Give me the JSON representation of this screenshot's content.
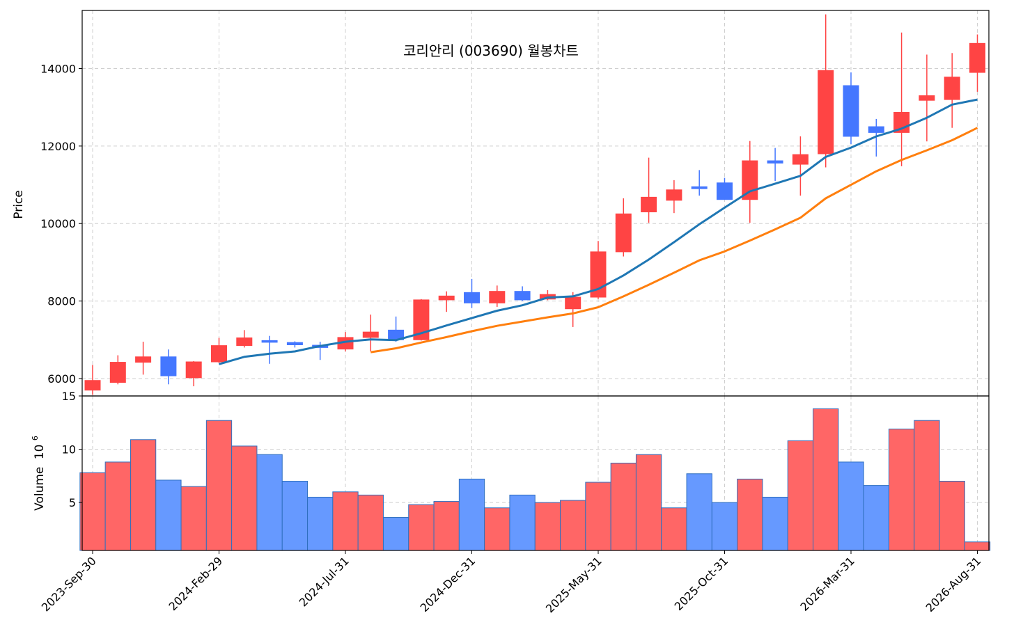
{
  "chart_data": {
    "type": "candlestick",
    "title": "코리안리 (003690) 월봉차트",
    "ylabel": "Price",
    "volume_label": "Volume",
    "volume_exponent_base": "10",
    "volume_exponent": "6",
    "colors": {
      "up": "#ff4444",
      "down": "#4477ff",
      "vol_up": "#ff6666",
      "vol_down": "#6699ff",
      "vol_edge": "#2f6fbf",
      "ma_short": "#1f77b4",
      "ma_long": "#ff7f0e"
    },
    "ylim": [
      5550,
      15500
    ],
    "yticks": [
      6000,
      8000,
      10000,
      12000,
      14000
    ],
    "volume_ylim": [
      0.5,
      15
    ],
    "volume_yticks": [
      5,
      10,
      15
    ],
    "xtick_labels": [
      "2023-Sep-30",
      "2024-Feb-29",
      "2024-Jul-31",
      "2024-Dec-31",
      "2025-May-31",
      "2025-Oct-31",
      "2026-Mar-31",
      "2026-Aug-31"
    ],
    "xtick_indices": [
      0,
      5,
      10,
      15,
      20,
      25,
      30,
      35
    ],
    "ohlc": [
      {
        "o": 5700,
        "h": 6350,
        "l": 5580,
        "c": 5950
      },
      {
        "o": 5900,
        "h": 6600,
        "l": 5850,
        "c": 6420
      },
      {
        "o": 6420,
        "h": 6950,
        "l": 6100,
        "c": 6560
      },
      {
        "o": 6560,
        "h": 6750,
        "l": 5850,
        "c": 6070
      },
      {
        "o": 6020,
        "h": 6450,
        "l": 5800,
        "c": 6430
      },
      {
        "o": 6430,
        "h": 7050,
        "l": 6400,
        "c": 6850
      },
      {
        "o": 6850,
        "h": 7250,
        "l": 6800,
        "c": 7050
      },
      {
        "o": 6980,
        "h": 7100,
        "l": 6380,
        "c": 6950
      },
      {
        "o": 6930,
        "h": 6960,
        "l": 6800,
        "c": 6870
      },
      {
        "o": 6860,
        "h": 6950,
        "l": 6480,
        "c": 6800
      },
      {
        "o": 6760,
        "h": 7200,
        "l": 6700,
        "c": 7060
      },
      {
        "o": 7060,
        "h": 7650,
        "l": 6700,
        "c": 7200
      },
      {
        "o": 7250,
        "h": 7600,
        "l": 6950,
        "c": 7000
      },
      {
        "o": 7000,
        "h": 8050,
        "l": 6980,
        "c": 8030
      },
      {
        "o": 8030,
        "h": 8250,
        "l": 7720,
        "c": 8130
      },
      {
        "o": 8220,
        "h": 8570,
        "l": 7820,
        "c": 7950
      },
      {
        "o": 7950,
        "h": 8400,
        "l": 7850,
        "c": 8250
      },
      {
        "o": 8250,
        "h": 8380,
        "l": 8000,
        "c": 8030
      },
      {
        "o": 8050,
        "h": 8280,
        "l": 8020,
        "c": 8170
      },
      {
        "o": 7800,
        "h": 8230,
        "l": 7330,
        "c": 8100
      },
      {
        "o": 8100,
        "h": 9550,
        "l": 8050,
        "c": 9270
      },
      {
        "o": 9270,
        "h": 10650,
        "l": 9150,
        "c": 10250
      },
      {
        "o": 10300,
        "h": 11700,
        "l": 10020,
        "c": 10680
      },
      {
        "o": 10600,
        "h": 11120,
        "l": 10270,
        "c": 10870
      },
      {
        "o": 10950,
        "h": 11380,
        "l": 10720,
        "c": 10900
      },
      {
        "o": 11050,
        "h": 11180,
        "l": 10620,
        "c": 10620
      },
      {
        "o": 10620,
        "h": 12130,
        "l": 10020,
        "c": 11620
      },
      {
        "o": 11620,
        "h": 11950,
        "l": 11100,
        "c": 11560
      },
      {
        "o": 11530,
        "h": 12250,
        "l": 10720,
        "c": 11780
      },
      {
        "o": 11800,
        "h": 15400,
        "l": 11450,
        "c": 13950
      },
      {
        "o": 13560,
        "h": 13900,
        "l": 12050,
        "c": 12250
      },
      {
        "o": 12500,
        "h": 12700,
        "l": 11730,
        "c": 12350
      },
      {
        "o": 12350,
        "h": 14930,
        "l": 11480,
        "c": 12870
      },
      {
        "o": 13180,
        "h": 14360,
        "l": 12120,
        "c": 13300
      },
      {
        "o": 13200,
        "h": 14400,
        "l": 12470,
        "c": 13780
      },
      {
        "o": 13900,
        "h": 14880,
        "l": 13400,
        "c": 14650
      }
    ],
    "ma_short": [
      null,
      null,
      null,
      null,
      null,
      6370,
      6560,
      6640,
      6700,
      6840,
      6950,
      7010,
      6990,
      7170,
      7370,
      7560,
      7750,
      7890,
      8090,
      8120,
      8310,
      8660,
      9070,
      9520,
      9980,
      10410,
      10830,
      11030,
      11230,
      11720,
      11960,
      12250,
      12450,
      12730,
      13070,
      13200
    ],
    "ma_long": [
      null,
      null,
      null,
      null,
      null,
      null,
      null,
      null,
      null,
      null,
      null,
      6680,
      6780,
      6930,
      7070,
      7220,
      7360,
      7470,
      7580,
      7680,
      7840,
      8120,
      8420,
      8730,
      9050,
      9280,
      9560,
      9850,
      10150,
      10650,
      11000,
      11350,
      11640,
      11890,
      12150,
      12470
    ],
    "volume": [
      7.8,
      8.8,
      10.9,
      7.1,
      6.5,
      12.7,
      10.3,
      9.5,
      7.0,
      5.5,
      6.0,
      5.7,
      3.6,
      4.8,
      5.1,
      7.2,
      4.5,
      5.7,
      5.0,
      5.2,
      6.9,
      8.7,
      9.5,
      4.5,
      7.7,
      5.0,
      7.2,
      5.5,
      10.8,
      13.8,
      8.8,
      6.6,
      11.9,
      12.7,
      7.0,
      1.3
    ]
  }
}
